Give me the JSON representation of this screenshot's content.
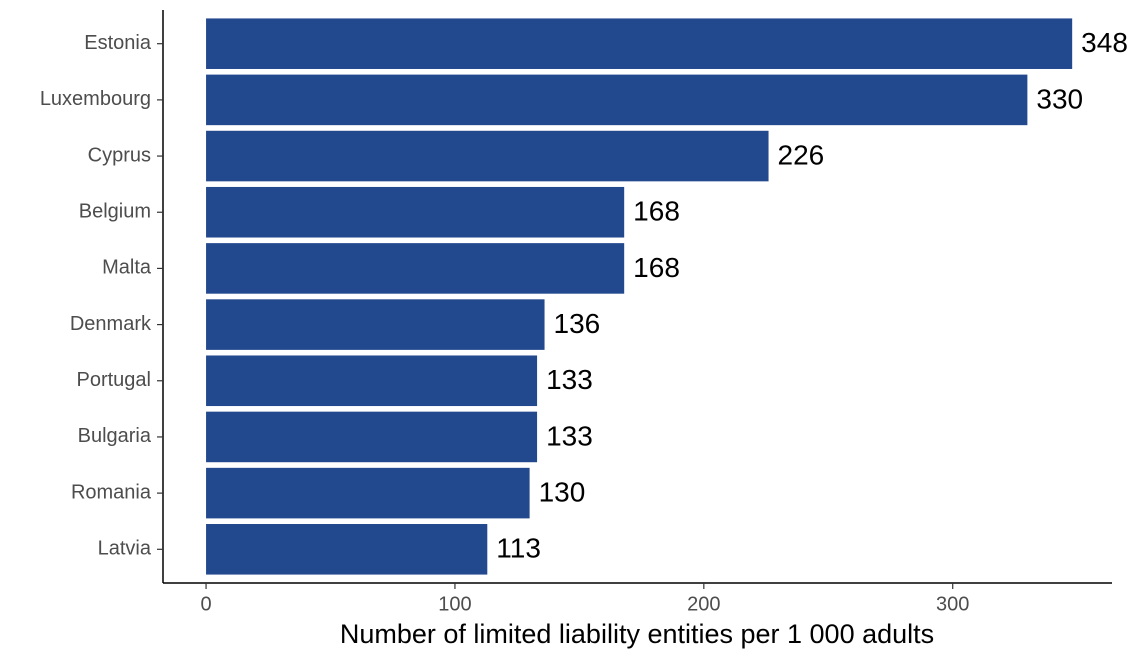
{
  "chart_data": {
    "type": "bar",
    "orientation": "horizontal",
    "x_label": "Number of limited liability entities per 1 000 adults",
    "categories": [
      "Estonia",
      "Luxembourg",
      "Cyprus",
      "Belgium",
      "Malta",
      "Denmark",
      "Portugal",
      "Bulgaria",
      "Romania",
      "Latvia"
    ],
    "values": [
      348,
      330,
      226,
      168,
      168,
      136,
      133,
      133,
      130,
      113
    ],
    "color": "#22488e",
    "xlim": [
      -17.3,
      364
    ],
    "xticks": [
      0,
      100,
      200,
      300
    ],
    "grid": false
  }
}
